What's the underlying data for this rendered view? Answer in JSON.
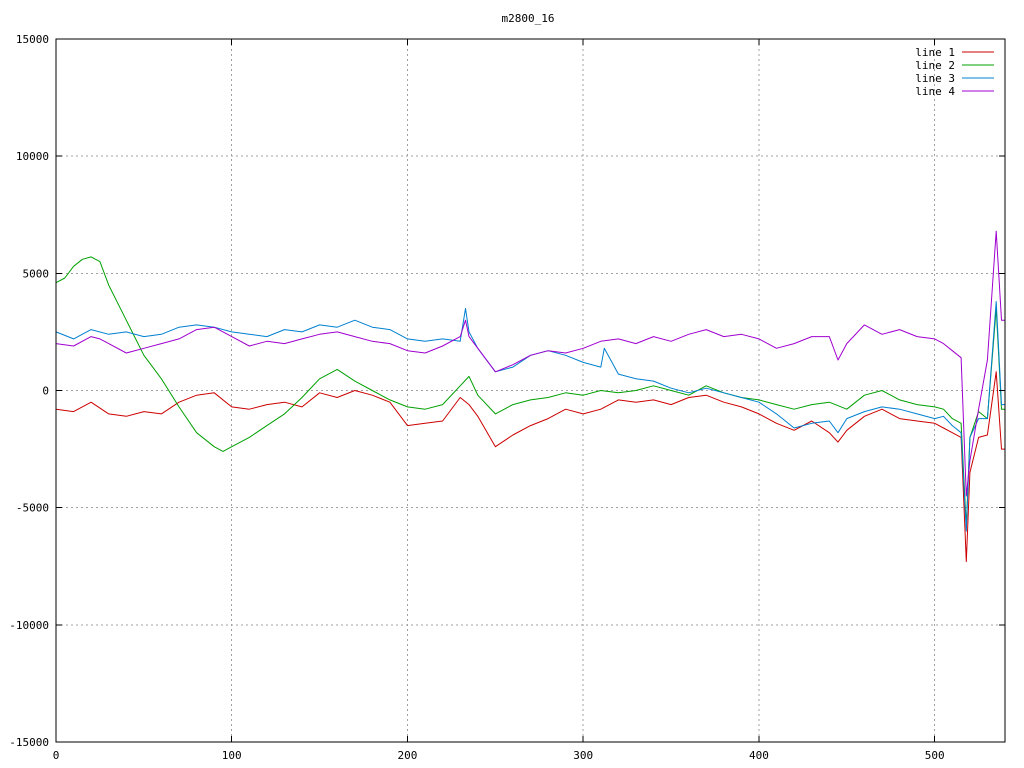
{
  "chart_data": {
    "type": "line",
    "title": "m2800_16",
    "xlabel": "",
    "ylabel": "",
    "xlim": [
      0,
      540
    ],
    "ylim": [
      -15000,
      15000
    ],
    "xticks": [
      0,
      100,
      200,
      300,
      400,
      500
    ],
    "yticks": [
      -15000,
      -10000,
      -5000,
      0,
      5000,
      10000,
      15000
    ],
    "grid": true,
    "legend_position": "top-right",
    "series": [
      {
        "name": "line 1",
        "color": "#cc0000",
        "x": [
          0,
          10,
          20,
          30,
          40,
          50,
          60,
          70,
          80,
          90,
          100,
          110,
          120,
          130,
          140,
          150,
          160,
          170,
          180,
          190,
          200,
          210,
          220,
          230,
          235,
          240,
          250,
          260,
          270,
          280,
          290,
          300,
          310,
          320,
          330,
          340,
          350,
          360,
          370,
          380,
          390,
          400,
          410,
          420,
          430,
          440,
          445,
          450,
          460,
          470,
          480,
          490,
          500,
          505,
          510,
          515,
          518,
          520,
          525,
          530,
          535,
          538,
          540
        ],
        "y": [
          -800,
          -900,
          -500,
          -1000,
          -1100,
          -900,
          -1000,
          -500,
          -200,
          -100,
          -700,
          -800,
          -600,
          -500,
          -700,
          -100,
          -300,
          0,
          -200,
          -500,
          -1500,
          -1400,
          -1300,
          -300,
          -600,
          -1100,
          -2400,
          -1900,
          -1500,
          -1200,
          -800,
          -1000,
          -800,
          -400,
          -500,
          -400,
          -600,
          -300,
          -200,
          -500,
          -700,
          -1000,
          -1400,
          -1700,
          -1300,
          -1800,
          -2200,
          -1700,
          -1100,
          -800,
          -1200,
          -1300,
          -1400,
          -1600,
          -1800,
          -2000,
          -7300,
          -3500,
          -2000,
          -1900,
          800,
          -2500,
          -2500
        ]
      },
      {
        "name": "line 2",
        "color": "#00a000",
        "x": [
          0,
          5,
          10,
          15,
          20,
          25,
          30,
          40,
          50,
          60,
          70,
          80,
          90,
          95,
          100,
          110,
          120,
          130,
          140,
          150,
          160,
          170,
          180,
          190,
          200,
          210,
          220,
          230,
          235,
          240,
          250,
          260,
          270,
          280,
          290,
          300,
          310,
          320,
          330,
          340,
          350,
          360,
          370,
          380,
          390,
          400,
          410,
          420,
          430,
          440,
          450,
          460,
          470,
          480,
          490,
          500,
          505,
          510,
          515,
          518,
          520,
          525,
          530,
          535,
          538,
          540
        ],
        "y": [
          4600,
          4800,
          5300,
          5600,
          5700,
          5500,
          4500,
          3000,
          1500,
          500,
          -700,
          -1800,
          -2400,
          -2600,
          -2400,
          -2000,
          -1500,
          -1000,
          -300,
          500,
          900,
          400,
          0,
          -400,
          -700,
          -800,
          -600,
          200,
          600,
          -200,
          -1000,
          -600,
          -400,
          -300,
          -100,
          -200,
          0,
          -100,
          0,
          200,
          0,
          -200,
          200,
          -100,
          -300,
          -400,
          -600,
          -800,
          -600,
          -500,
          -800,
          -200,
          0,
          -400,
          -600,
          -700,
          -800,
          -1200,
          -1400,
          -5800,
          -2000,
          -900,
          -1200,
          3500,
          -800,
          -800
        ]
      },
      {
        "name": "line 3",
        "color": "#0080d0",
        "x": [
          0,
          10,
          20,
          30,
          40,
          50,
          60,
          70,
          80,
          90,
          100,
          110,
          120,
          130,
          140,
          150,
          160,
          170,
          180,
          190,
          200,
          210,
          220,
          230,
          233,
          235,
          240,
          250,
          260,
          270,
          280,
          290,
          300,
          310,
          312,
          320,
          330,
          340,
          350,
          360,
          370,
          380,
          390,
          400,
          410,
          420,
          430,
          440,
          445,
          450,
          460,
          470,
          480,
          490,
          500,
          505,
          510,
          515,
          518,
          520,
          525,
          530,
          535,
          538,
          540
        ],
        "y": [
          2500,
          2200,
          2600,
          2400,
          2500,
          2300,
          2400,
          2700,
          2800,
          2700,
          2500,
          2400,
          2300,
          2600,
          2500,
          2800,
          2700,
          3000,
          2700,
          2600,
          2200,
          2100,
          2200,
          2100,
          3500,
          2500,
          1800,
          800,
          1000,
          1500,
          1700,
          1500,
          1200,
          1000,
          1800,
          700,
          500,
          400,
          100,
          -100,
          100,
          -100,
          -300,
          -500,
          -1000,
          -1600,
          -1400,
          -1300,
          -1800,
          -1200,
          -900,
          -700,
          -800,
          -1000,
          -1200,
          -1100,
          -1500,
          -1800,
          -6000,
          -2000,
          -1200,
          -1200,
          3800,
          -600,
          -600
        ]
      },
      {
        "name": "line 4",
        "color": "#a000d0",
        "x": [
          0,
          10,
          20,
          25,
          30,
          40,
          50,
          60,
          70,
          80,
          90,
          100,
          110,
          120,
          130,
          140,
          150,
          160,
          170,
          180,
          190,
          200,
          210,
          220,
          230,
          233,
          235,
          240,
          250,
          260,
          270,
          280,
          290,
          300,
          310,
          320,
          330,
          340,
          350,
          360,
          370,
          380,
          390,
          400,
          410,
          420,
          430,
          440,
          445,
          450,
          460,
          470,
          480,
          490,
          500,
          505,
          510,
          515,
          518,
          520,
          525,
          530,
          535,
          538,
          540
        ],
        "y": [
          2000,
          1900,
          2300,
          2200,
          2000,
          1600,
          1800,
          2000,
          2200,
          2600,
          2700,
          2300,
          1900,
          2100,
          2000,
          2200,
          2400,
          2500,
          2300,
          2100,
          2000,
          1700,
          1600,
          1900,
          2300,
          3000,
          2300,
          1800,
          800,
          1100,
          1500,
          1700,
          1600,
          1800,
          2100,
          2200,
          2000,
          2300,
          2100,
          2400,
          2600,
          2300,
          2400,
          2200,
          1800,
          2000,
          2300,
          2300,
          1300,
          2000,
          2800,
          2400,
          2600,
          2300,
          2200,
          2000,
          1700,
          1400,
          -4500,
          -3000,
          -800,
          1300,
          6800,
          3000,
          3000
        ]
      }
    ]
  }
}
